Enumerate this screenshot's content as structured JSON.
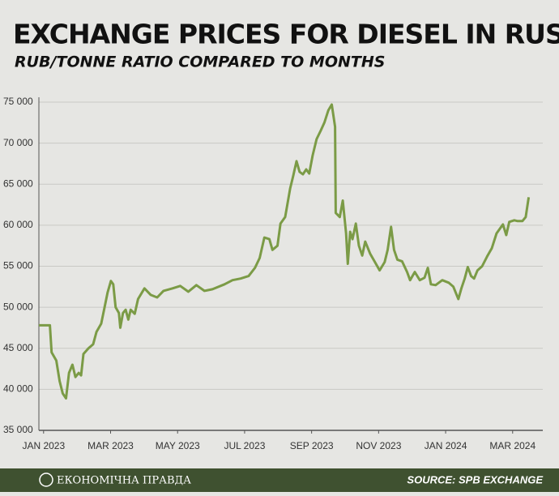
{
  "chart_data": {
    "type": "line",
    "title": "EXCHANGE PRICES FOR DIESEL IN RUSSIA",
    "subtitle": "RUB/TONNE RATIO COMPARED TO MONTHS",
    "x": [
      -0.14,
      0.19,
      0.24,
      0.38,
      0.48,
      0.57,
      0.67,
      0.76,
      0.86,
      0.95,
      1.05,
      1.12,
      1.19,
      1.34,
      1.48,
      1.58,
      1.72,
      1.82,
      1.91,
      2.01,
      2.08,
      2.15,
      2.25,
      2.29,
      2.37,
      2.45,
      2.53,
      2.6,
      2.72,
      2.82,
      3.01,
      3.2,
      3.39,
      3.58,
      3.85,
      4.08,
      4.32,
      4.56,
      4.8,
      5.04,
      5.4,
      5.64,
      5.88,
      6.12,
      6.31,
      6.45,
      6.59,
      6.74,
      6.83,
      6.98,
      7.07,
      7.21,
      7.36,
      7.45,
      7.55,
      7.64,
      7.74,
      7.84,
      7.93,
      8.03,
      8.15,
      8.27,
      8.38,
      8.5,
      8.6,
      8.7,
      8.72,
      8.84,
      8.93,
      9.03,
      9.08,
      9.15,
      9.22,
      9.32,
      9.41,
      9.51,
      9.6,
      9.75,
      9.89,
      10.03,
      10.18,
      10.27,
      10.37,
      10.46,
      10.56,
      10.7,
      10.85,
      10.94,
      11.08,
      11.23,
      11.37,
      11.47,
      11.56,
      11.7,
      11.9,
      12.09,
      12.23,
      12.33,
      12.38,
      12.47,
      12.57,
      12.66,
      12.76,
      12.85,
      12.95,
      13.09,
      13.24,
      13.38,
      13.52,
      13.71,
      13.81,
      13.9,
      14.05,
      14.15,
      14.29,
      14.39,
      14.48
    ],
    "series": [
      {
        "name": "Diesel",
        "color": "#7b9b46",
        "values": [
          47800,
          47800,
          44500,
          43500,
          41000,
          39500,
          38900,
          42000,
          43000,
          41500,
          42000,
          41700,
          44300,
          45000,
          45500,
          47000,
          48000,
          50000,
          51800,
          53200,
          52800,
          50000,
          49300,
          47500,
          49300,
          49700,
          48500,
          49700,
          49200,
          51000,
          52300,
          51500,
          51200,
          52000,
          52300,
          52600,
          51900,
          52700,
          52000,
          52200,
          52800,
          53300,
          53500,
          53800,
          54800,
          56000,
          58500,
          58300,
          57000,
          57500,
          60200,
          61000,
          64500,
          66000,
          67800,
          66500,
          66200,
          66800,
          66300,
          68500,
          70500,
          71500,
          72500,
          74000,
          74700,
          72000,
          61500,
          61000,
          63000,
          59000,
          55300,
          59200,
          58300,
          60200,
          57500,
          56300,
          58000,
          56500,
          55500,
          54500,
          55500,
          57000,
          59800,
          57000,
          55800,
          55600,
          54300,
          53300,
          54300,
          53300,
          53600,
          54800,
          52800,
          52700,
          53300,
          53000,
          52500,
          51500,
          51000,
          52300,
          53500,
          54900,
          53800,
          53500,
          54500,
          55000,
          56200,
          57200,
          59000,
          60100,
          58800,
          60400,
          60600,
          60500,
          60500,
          61000,
          63400
        ]
      }
    ],
    "xlim": [
      -0.14,
      14.9
    ],
    "xticks": [
      {
        "value": 0,
        "label": "JAN 2023"
      },
      {
        "value": 2,
        "label": "MAR 2023"
      },
      {
        "value": 4,
        "label": "MAY 2023"
      },
      {
        "value": 6,
        "label": "JUL 2023"
      },
      {
        "value": 8,
        "label": "SEP 2023"
      },
      {
        "value": 10,
        "label": "NOV 2023"
      },
      {
        "value": 12,
        "label": "JAN 2024"
      },
      {
        "value": 14,
        "label": "MAR 2024"
      }
    ],
    "ylim": [
      35000,
      75000
    ],
    "yticks": [
      {
        "value": 35000,
        "label": "35 000"
      },
      {
        "value": 40000,
        "label": "40 000"
      },
      {
        "value": 45000,
        "label": "45 000"
      },
      {
        "value": 50000,
        "label": "50 000"
      },
      {
        "value": 55000,
        "label": "55 000"
      },
      {
        "value": 60000,
        "label": "60 000"
      },
      {
        "value": 65000,
        "label": "65 000"
      },
      {
        "value": 70000,
        "label": "70 000"
      },
      {
        "value": 75000,
        "label": "75 000"
      }
    ],
    "grid": true
  },
  "brand": "ЕКОНОМІЧНА ПРАВДА",
  "source": "SOURCE: SPB EXCHANGE"
}
